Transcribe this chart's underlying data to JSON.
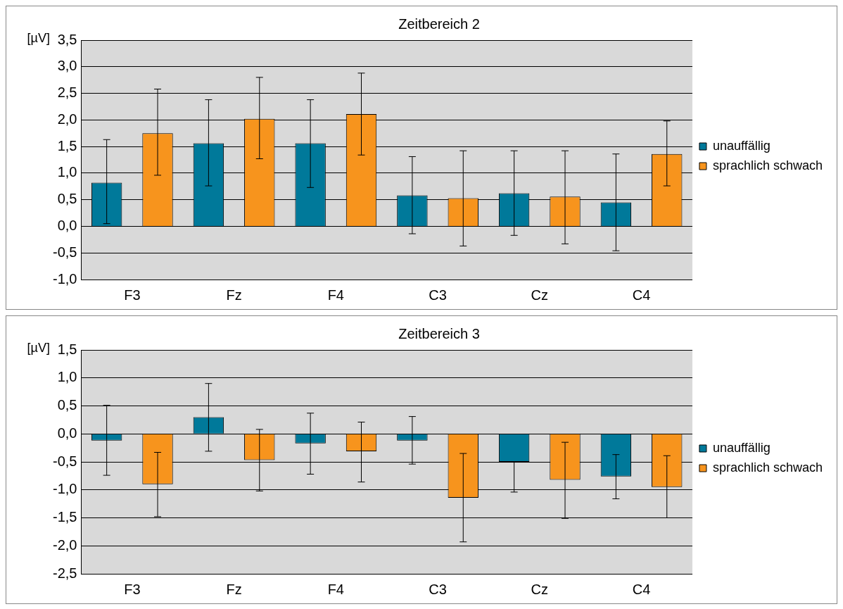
{
  "chart_data": [
    {
      "type": "bar",
      "title": "Zeitbereich 2",
      "ylabel": "[µV]",
      "categories": [
        "F3",
        "Fz",
        "F4",
        "C3",
        "Cz",
        "C4"
      ],
      "series": [
        {
          "name": "unauffällig",
          "color": "#00799a",
          "values": [
            0.82,
            1.56,
            1.56,
            0.58,
            0.62,
            0.45
          ],
          "errors": [
            [
              0.05,
              1.63
            ],
            [
              0.76,
              2.38
            ],
            [
              0.73,
              2.38
            ],
            [
              -0.14,
              1.31
            ],
            [
              -0.17,
              1.42
            ],
            [
              -0.46,
              1.36
            ]
          ]
        },
        {
          "name": "sprachlich schwach",
          "color": "#f7941d",
          "values": [
            1.75,
            2.02,
            2.11,
            0.53,
            0.56,
            1.36
          ],
          "errors": [
            [
              0.96,
              2.58
            ],
            [
              1.27,
              2.8
            ],
            [
              1.34,
              2.88
            ],
            [
              -0.37,
              1.42
            ],
            [
              -0.33,
              1.42
            ],
            [
              0.76,
              1.98
            ]
          ]
        }
      ],
      "ylim": [
        -1,
        3.5
      ],
      "yticks": [
        {
          "value": -1,
          "label": "-1,0"
        },
        {
          "value": -0.5,
          "label": "-0,5"
        },
        {
          "value": 0,
          "label": "0,0"
        },
        {
          "value": 0.5,
          "label": "0,5"
        },
        {
          "value": 1,
          "label": "1,0"
        },
        {
          "value": 1.5,
          "label": "1,5"
        },
        {
          "value": 2,
          "label": "2,0"
        },
        {
          "value": 2.5,
          "label": "2,5"
        },
        {
          "value": 3,
          "label": "3,0"
        },
        {
          "value": 3.5,
          "label": "3,5"
        }
      ],
      "grid": "y",
      "legend": "right"
    },
    {
      "type": "bar",
      "title": "Zeitbereich 3",
      "ylabel": "[µV]",
      "categories": [
        "F3",
        "Fz",
        "F4",
        "C3",
        "Cz",
        "C4"
      ],
      "series": [
        {
          "name": "unauffällig",
          "color": "#00799a",
          "values": [
            -0.12,
            0.3,
            -0.17,
            -0.12,
            -0.5,
            -0.76
          ],
          "errors": [
            [
              -0.74,
              0.51
            ],
            [
              -0.31,
              0.9
            ],
            [
              -0.72,
              0.37
            ],
            [
              -0.54,
              0.31
            ],
            [
              -1.04,
              -0.5
            ],
            [
              -1.16,
              -0.37
            ]
          ]
        },
        {
          "name": "sprachlich schwach",
          "color": "#f7941d",
          "values": [
            -0.9,
            -0.47,
            -0.31,
            -1.14,
            -0.82,
            -0.95
          ],
          "errors": [
            [
              -1.48,
              -0.33
            ],
            [
              -1.02,
              0.08
            ],
            [
              -0.86,
              0.21
            ],
            [
              -1.93,
              -0.35
            ],
            [
              -1.51,
              -0.15
            ],
            [
              -1.5,
              -0.39
            ]
          ]
        }
      ],
      "ylim": [
        -2.5,
        1.5
      ],
      "yticks": [
        {
          "value": -2.5,
          "label": "-2,5"
        },
        {
          "value": -2,
          "label": "-2,0"
        },
        {
          "value": -1.5,
          "label": "-1,5"
        },
        {
          "value": -1,
          "label": "-1,0"
        },
        {
          "value": -0.5,
          "label": "-0,5"
        },
        {
          "value": 0,
          "label": "0,0"
        },
        {
          "value": 0.5,
          "label": "0,5"
        },
        {
          "value": 1,
          "label": "1,0"
        },
        {
          "value": 1.5,
          "label": "1,5"
        }
      ],
      "grid": "y",
      "legend": "right"
    }
  ]
}
